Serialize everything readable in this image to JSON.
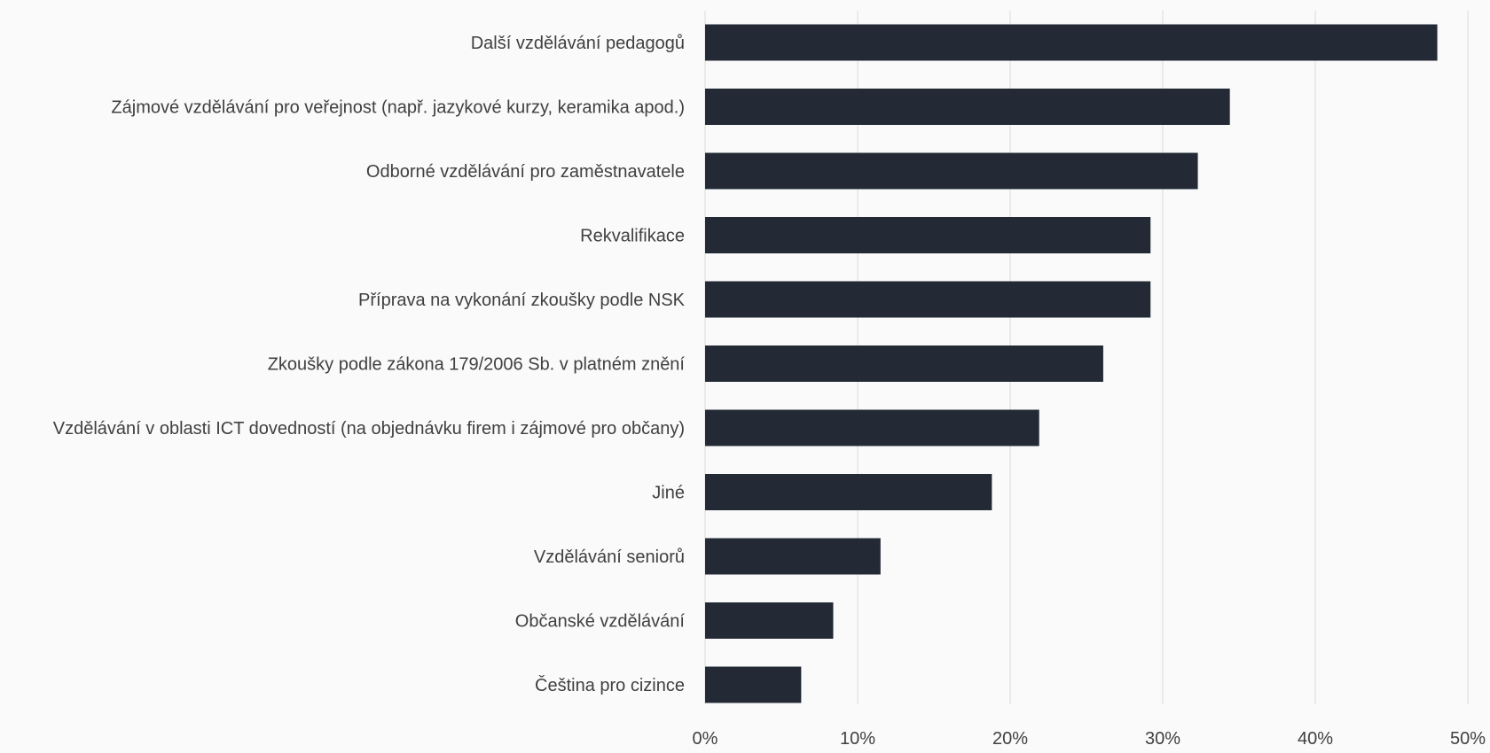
{
  "chart_data": {
    "type": "bar",
    "orientation": "horizontal",
    "categories": [
      "Další vzdělávání pedagogů",
      "Zájmové vzdělávání pro veřejnost (např. jazykové kurzy, keramika apod.)",
      "Odborné vzdělávání pro zaměstnavatele",
      "Rekvalifikace",
      "Příprava na vykonání zkoušky podle NSK",
      "Zkoušky podle zákona 179/2006 Sb. v platném znění",
      "Vzdělávání v oblasti ICT dovedností (na objednávku firem i zájmové pro občany)",
      "Jiné",
      "Vzdělávání seniorů",
      "Občanské vzdělávání",
      "Čeština pro cizince"
    ],
    "values": [
      48,
      34.4,
      32.3,
      29.2,
      29.2,
      26.1,
      21.9,
      18.8,
      11.5,
      8.4,
      6.3
    ],
    "xlim": [
      0,
      50
    ],
    "ticks": [
      {
        "value": 0,
        "label": "0%"
      },
      {
        "value": 10,
        "label": "10%"
      },
      {
        "value": 20,
        "label": "20%"
      },
      {
        "value": 30,
        "label": "30%"
      },
      {
        "value": 40,
        "label": "40%"
      },
      {
        "value": 50,
        "label": "50%"
      }
    ],
    "unit": "%",
    "grid": true,
    "bar_color": "#232a35",
    "grid_color": "#d9d9d9",
    "background": "#fafafa"
  }
}
